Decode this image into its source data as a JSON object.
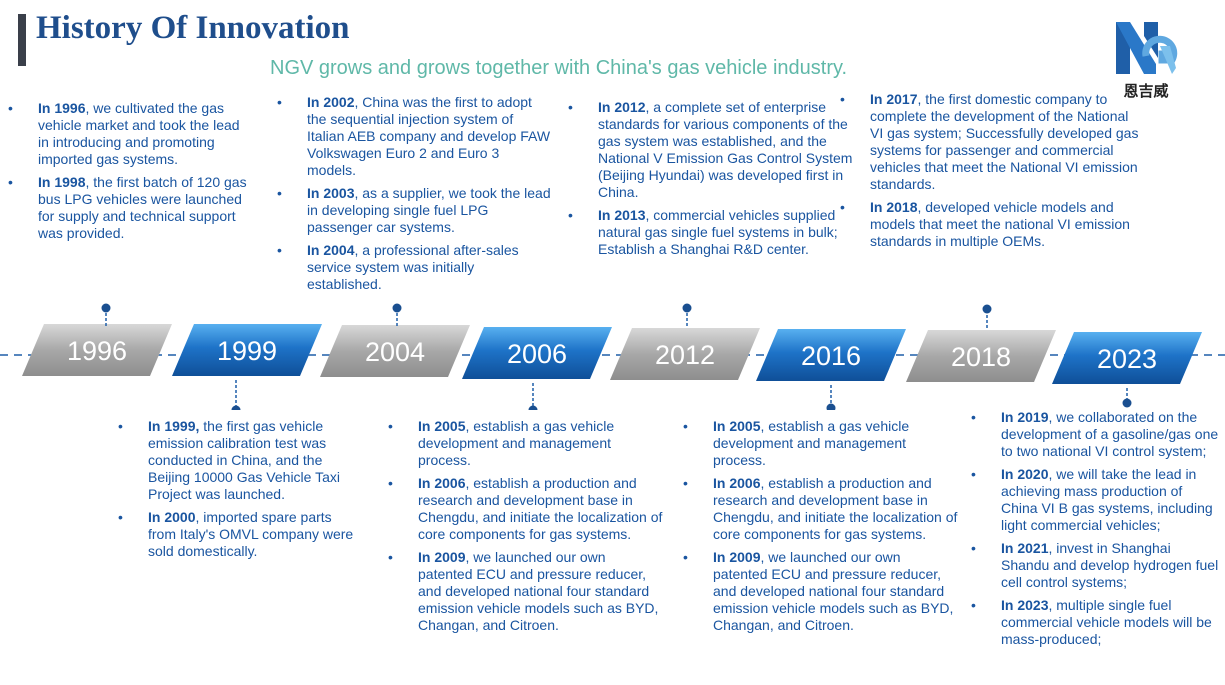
{
  "header": {
    "title": "History Of Innovation",
    "subtitle": "NGV grows and grows together with China's gas vehicle industry.",
    "logo_text": "恩吉威",
    "logo_letters": "NGV"
  },
  "colors": {
    "title": "#1f4e8c",
    "subtitle": "#5fb8a8",
    "text": "#1a55a0",
    "blue_band": "#1e73c8",
    "gray_band": "#a8a8a8"
  },
  "timeline": {
    "years": [
      "1996",
      "1999",
      "2004",
      "2006",
      "2012",
      "2016",
      "2018",
      "2023"
    ]
  },
  "top_blocks": [
    {
      "items": [
        {
          "year": "In 1996",
          "text": ", we cultivated the gas vehicle market and took the lead in introducing and promoting imported gas systems."
        },
        {
          "year": "In 1998",
          "text": ", the first batch of 120 gas bus LPG vehicles were launched for supply and technical support was provided."
        }
      ]
    },
    {
      "items": [
        {
          "year": "In 2002",
          "text": ", China was the first to adopt the sequential injection system of Italian AEB company and develop FAW Volkswagen Euro 2 and Euro 3 models."
        },
        {
          "year": "In 2003",
          "text": ", as a supplier, we took the lead in developing single fuel LPG passenger car systems."
        },
        {
          "year": "In 2004",
          "text": ", a professional after-sales service system was initially established."
        }
      ]
    },
    {
      "items": [
        {
          "year": "In 2012",
          "text": ", a complete set of enterprise standards for various components of the gas system was established, and the National V Emission Gas Control System (Beijing Hyundai) was developed first in China."
        },
        {
          "year": "In 2013",
          "text": ", commercial vehicles supplied natural gas single fuel systems in bulk; Establish a Shanghai R&D center."
        }
      ]
    },
    {
      "items": [
        {
          "year": "In 2017",
          "text": ", the first domestic company to complete the development of the National VI gas system; Successfully developed gas systems for passenger and commercial vehicles that meet the National VI emission standards."
        },
        {
          "year": "In 2018",
          "text": ", developed vehicle models and models that meet the national VI emission standards in multiple OEMs."
        }
      ]
    }
  ],
  "bottom_blocks": [
    {
      "items": [
        {
          "year": "In 1999,",
          "text": " the first gas vehicle emission calibration test was conducted in China, and the Beijing 10000 Gas Vehicle Taxi Project was launched."
        },
        {
          "year": "In 2000",
          "text": ", imported spare parts from Italy's OMVL company were sold domestically."
        }
      ]
    },
    {
      "items": [
        {
          "year": "In 2005",
          "text": ", establish a gas vehicle development and management process."
        },
        {
          "year": "In 2006",
          "text": ", establish a production and research and development base in Chengdu, and initiate the localization of core components for gas systems."
        },
        {
          "year": "In 2009",
          "text": ", we launched our own patented ECU and pressure reducer, and developed national four standard emission vehicle models such as BYD, Changan, and Citroen."
        }
      ]
    },
    {
      "items": [
        {
          "year": "In 2005",
          "text": ", establish a gas vehicle development and management process."
        },
        {
          "year": "In 2006",
          "text": ", establish a production and research and development base in Chengdu, and initiate the localization of core components for gas systems."
        },
        {
          "year": "In 2009",
          "text": ", we launched our own patented ECU and pressure reducer, and developed national four standard emission vehicle models such as BYD, Changan, and Citroen."
        }
      ]
    },
    {
      "items": [
        {
          "year": "In 2019",
          "text": ", we collaborated on the development of a gasoline/gas one to two national VI control system;"
        },
        {
          "year": "In 2020",
          "text": ", we will take the lead in achieving mass production of China VI B gas systems, including light commercial vehicles;"
        },
        {
          "year": "In 2021",
          "text": ", invest in Shanghai Shandu and develop hydrogen fuel cell control systems;"
        },
        {
          "year": "In 2023",
          "text": ", multiple single fuel commercial vehicle models will be mass-produced;"
        }
      ]
    }
  ]
}
